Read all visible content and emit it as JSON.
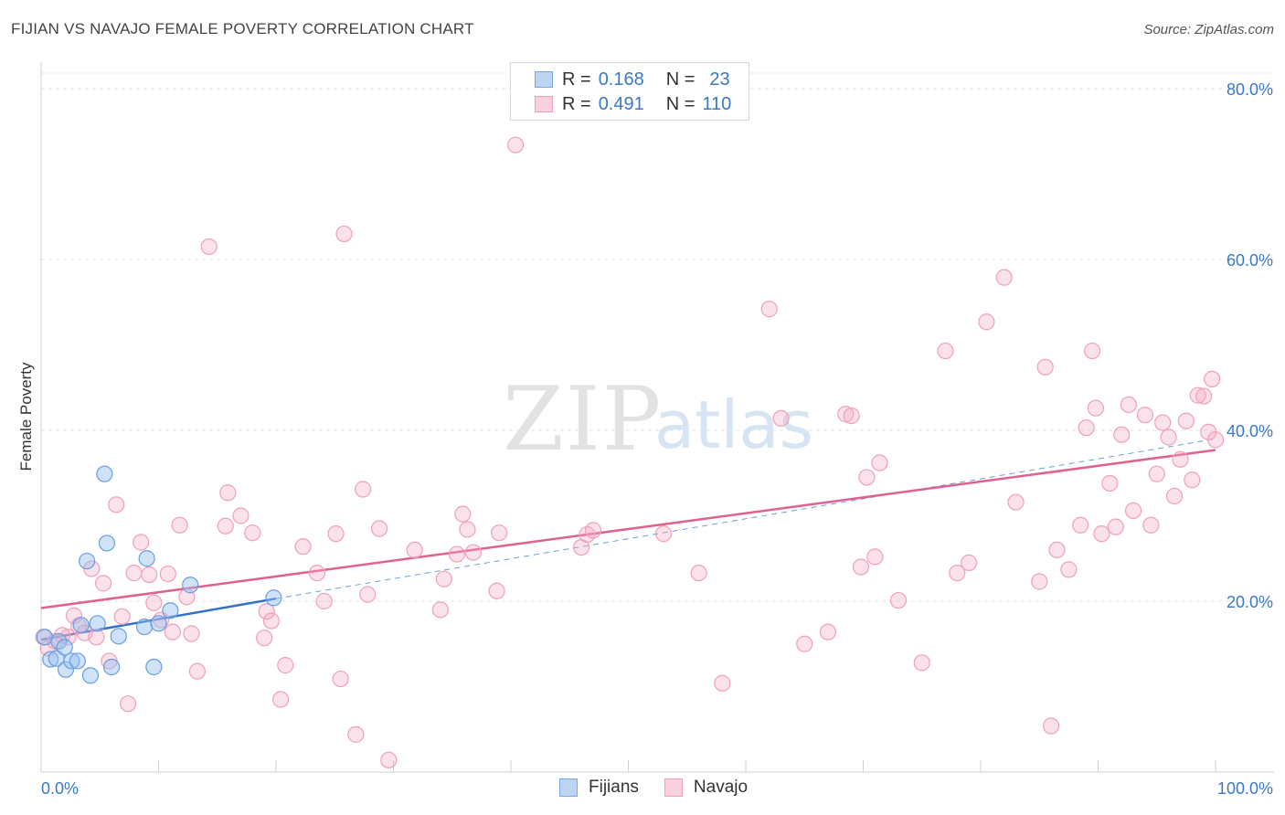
{
  "header": {
    "title": "FIJIAN VS NAVAJO FEMALE POVERTY CORRELATION CHART",
    "source": "Source: ZipAtlas.com"
  },
  "legend": {
    "fijians": {
      "r_label": "R =",
      "r_value": "0.168",
      "n_label": "N =",
      "n_value": "23"
    },
    "navajo": {
      "r_label": "R =",
      "r_value": "0.491",
      "n_label": "N =",
      "n_value": "110"
    }
  },
  "bottom_legend": {
    "fijians": "Fijians",
    "navajo": "Navajo"
  },
  "chart_data": {
    "type": "scatter",
    "title": "FIJIAN VS NAVAJO FEMALE POVERTY CORRELATION CHART",
    "xlabel": "",
    "ylabel": "Female Poverty",
    "xlim": [
      0,
      100
    ],
    "ylim": [
      0,
      80
    ],
    "x_tick_labels": [
      "0.0%",
      "100.0%"
    ],
    "y_ticks": [
      20,
      40,
      60,
      80
    ],
    "y_tick_labels": [
      "20.0%",
      "40.0%",
      "60.0%",
      "80.0%"
    ],
    "grid": true,
    "legend_position": "top-center",
    "watermark": "ZIPatlas",
    "colors": {
      "fijians": "#7aa8e0",
      "navajo": "#f0a0b8",
      "fijians_line": "#2f72c9",
      "navajo_line": "#e06090",
      "tick_label": "#3a78c9"
    },
    "series": [
      {
        "name": "Fijians",
        "r": 0.168,
        "n": 23,
        "trend": {
          "x": [
            0,
            20
          ],
          "y": [
            15.5,
            20.3
          ]
        },
        "trend_extension": {
          "x": [
            20,
            100
          ],
          "y": [
            20.3,
            39.0
          ]
        },
        "points": [
          [
            0.3,
            15.8
          ],
          [
            0.8,
            13.2
          ],
          [
            1.3,
            13.3
          ],
          [
            1.5,
            15.3
          ],
          [
            2.0,
            14.6
          ],
          [
            2.1,
            12.0
          ],
          [
            2.6,
            13.0
          ],
          [
            3.1,
            13.0
          ],
          [
            3.4,
            17.2
          ],
          [
            3.9,
            24.7
          ],
          [
            4.2,
            11.3
          ],
          [
            4.8,
            17.4
          ],
          [
            5.4,
            34.9
          ],
          [
            5.6,
            26.8
          ],
          [
            6.0,
            12.3
          ],
          [
            6.6,
            15.9
          ],
          [
            8.8,
            17.0
          ],
          [
            9.0,
            25.0
          ],
          [
            9.6,
            12.3
          ],
          [
            10.0,
            17.4
          ],
          [
            11.0,
            18.9
          ],
          [
            12.7,
            21.9
          ],
          [
            19.8,
            20.4
          ]
        ]
      },
      {
        "name": "Navajo",
        "r": 0.491,
        "n": 110,
        "trend": {
          "x": [
            0,
            100
          ],
          "y": [
            19.2,
            37.7
          ]
        },
        "points": [
          [
            0.2,
            15.8
          ],
          [
            0.6,
            14.5
          ],
          [
            1.2,
            15.3
          ],
          [
            1.8,
            16.0
          ],
          [
            2.3,
            15.8
          ],
          [
            2.8,
            18.3
          ],
          [
            3.2,
            17.1
          ],
          [
            3.7,
            16.3
          ],
          [
            4.3,
            23.8
          ],
          [
            4.7,
            15.8
          ],
          [
            5.3,
            22.1
          ],
          [
            5.8,
            13.0
          ],
          [
            6.4,
            31.3
          ],
          [
            6.9,
            18.2
          ],
          [
            7.4,
            8.0
          ],
          [
            7.9,
            23.3
          ],
          [
            8.5,
            26.9
          ],
          [
            9.2,
            23.1
          ],
          [
            9.6,
            19.8
          ],
          [
            10.2,
            17.8
          ],
          [
            10.8,
            23.2
          ],
          [
            11.2,
            16.4
          ],
          [
            11.8,
            28.9
          ],
          [
            12.4,
            20.5
          ],
          [
            12.8,
            16.2
          ],
          [
            13.3,
            11.8
          ],
          [
            14.3,
            61.5
          ],
          [
            15.7,
            28.8
          ],
          [
            15.9,
            32.7
          ],
          [
            17.0,
            30.0
          ],
          [
            18.0,
            28.0
          ],
          [
            19.0,
            15.7
          ],
          [
            19.2,
            18.8
          ],
          [
            19.6,
            17.7
          ],
          [
            20.4,
            8.5
          ],
          [
            20.8,
            12.5
          ],
          [
            22.3,
            26.4
          ],
          [
            23.5,
            23.3
          ],
          [
            24.1,
            20.0
          ],
          [
            25.1,
            27.9
          ],
          [
            25.5,
            10.9
          ],
          [
            25.8,
            63.0
          ],
          [
            26.8,
            4.4
          ],
          [
            27.4,
            33.1
          ],
          [
            27.8,
            20.8
          ],
          [
            28.8,
            28.5
          ],
          [
            29.6,
            1.4
          ],
          [
            31.8,
            26.0
          ],
          [
            34.0,
            19.0
          ],
          [
            34.3,
            22.6
          ],
          [
            35.4,
            25.5
          ],
          [
            35.9,
            30.2
          ],
          [
            36.3,
            28.4
          ],
          [
            36.8,
            25.7
          ],
          [
            38.8,
            21.2
          ],
          [
            39.0,
            28.0
          ],
          [
            40.4,
            73.4
          ],
          [
            46.0,
            26.3
          ],
          [
            46.5,
            27.8
          ],
          [
            47.0,
            28.3
          ],
          [
            53.0,
            27.9
          ],
          [
            56.0,
            23.3
          ],
          [
            58.0,
            10.4
          ],
          [
            62.0,
            54.2
          ],
          [
            63.0,
            41.4
          ],
          [
            65.0,
            15.0
          ],
          [
            67.0,
            16.4
          ],
          [
            68.5,
            41.9
          ],
          [
            69.0,
            41.7
          ],
          [
            69.8,
            24.0
          ],
          [
            70.3,
            34.5
          ],
          [
            71.0,
            25.2
          ],
          [
            71.4,
            36.2
          ],
          [
            73.0,
            20.1
          ],
          [
            75.0,
            12.8
          ],
          [
            77.0,
            49.3
          ],
          [
            78.0,
            23.3
          ],
          [
            79.0,
            24.5
          ],
          [
            80.5,
            52.7
          ],
          [
            82.0,
            57.9
          ],
          [
            83.0,
            31.6
          ],
          [
            85.0,
            22.3
          ],
          [
            85.5,
            47.4
          ],
          [
            86.0,
            5.4
          ],
          [
            86.5,
            26.0
          ],
          [
            87.5,
            23.7
          ],
          [
            88.5,
            28.9
          ],
          [
            89.0,
            40.3
          ],
          [
            89.5,
            49.3
          ],
          [
            89.8,
            42.6
          ],
          [
            90.3,
            27.9
          ],
          [
            91.0,
            33.8
          ],
          [
            91.5,
            28.7
          ],
          [
            92.0,
            39.5
          ],
          [
            92.6,
            43.0
          ],
          [
            93.0,
            30.6
          ],
          [
            94.0,
            41.8
          ],
          [
            94.5,
            28.9
          ],
          [
            95.0,
            34.9
          ],
          [
            95.5,
            40.9
          ],
          [
            96.0,
            39.2
          ],
          [
            96.5,
            32.3
          ],
          [
            97.0,
            36.6
          ],
          [
            97.5,
            41.1
          ],
          [
            98.0,
            34.2
          ],
          [
            98.5,
            44.1
          ],
          [
            99.0,
            44.0
          ],
          [
            99.4,
            39.8
          ],
          [
            99.7,
            46.0
          ],
          [
            100.0,
            38.9
          ]
        ]
      }
    ]
  }
}
